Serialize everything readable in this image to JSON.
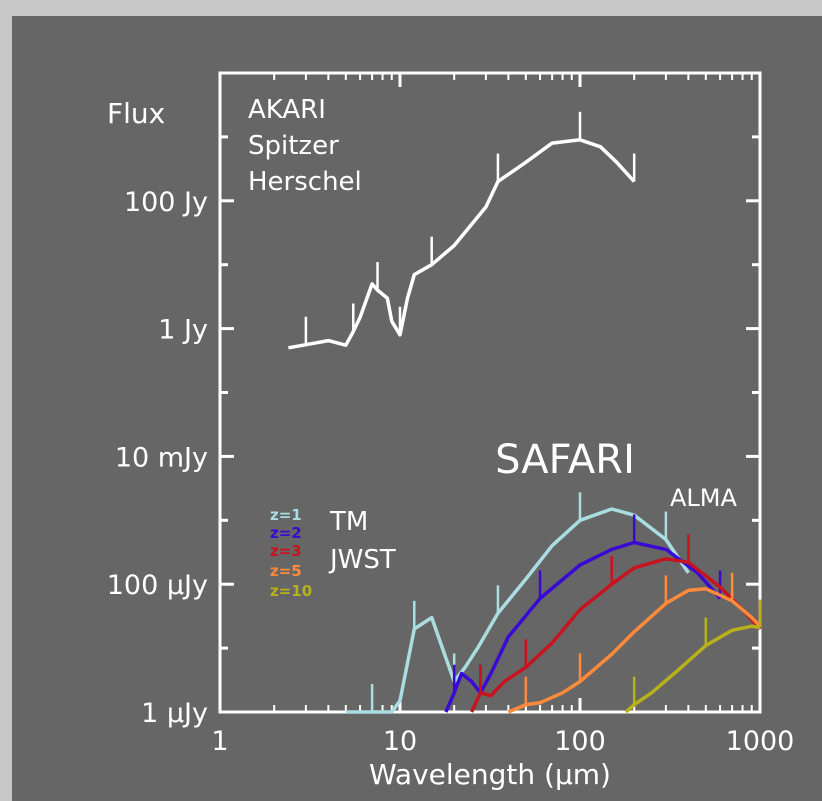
{
  "chart_data": {
    "type": "line",
    "title": "",
    "xlabel": "Wavelength (μm)",
    "ylabel": "Flux",
    "x_scale": "log",
    "y_scale": "log",
    "xlim": [
      1,
      1000
    ],
    "ylim": [
      1,
      10000000000
    ],
    "x_ticks": [
      {
        "value": 1,
        "label": "1"
      },
      {
        "value": 10,
        "label": "10"
      },
      {
        "value": 100,
        "label": "100"
      },
      {
        "value": 1000,
        "label": "1000"
      }
    ],
    "y_ticks": [
      {
        "value": 1,
        "label": "1  μJy"
      },
      {
        "value": 100,
        "label": "100  μJy"
      },
      {
        "value": 10000,
        "label": "10  mJy"
      },
      {
        "value": 1000000,
        "label": "1  Jy"
      },
      {
        "value": 100000000,
        "label": "100  Jy"
      }
    ],
    "y_units": "μJy",
    "series": [
      {
        "name": "",
        "color": "#ffffff",
        "points": [
          [
            2.4,
            500000
          ],
          [
            3,
            560000
          ],
          [
            4,
            650000
          ],
          [
            5,
            550000
          ],
          [
            5.5,
            900000
          ],
          [
            6,
            1500000
          ],
          [
            7,
            5000000
          ],
          [
            7.5,
            4000000
          ],
          [
            8.5,
            3000000
          ],
          [
            9,
            1300000
          ],
          [
            10,
            800000
          ],
          [
            11,
            3000000
          ],
          [
            12,
            7000000
          ],
          [
            15,
            10000000
          ],
          [
            20,
            20000000
          ],
          [
            30,
            80000000
          ],
          [
            35,
            200000000
          ],
          [
            50,
            400000000
          ],
          [
            70,
            800000000
          ],
          [
            100,
            900000000
          ],
          [
            130,
            700000000
          ],
          [
            160,
            400000000
          ],
          [
            200,
            200000000
          ]
        ]
      },
      {
        "name": "z=1",
        "color": "#a9dde0",
        "points": [
          [
            5,
            1
          ],
          [
            7,
            1
          ],
          [
            9,
            1
          ],
          [
            10,
            1.5
          ],
          [
            12,
            20
          ],
          [
            15,
            30
          ],
          [
            18,
            7
          ],
          [
            20,
            3
          ],
          [
            23,
            5
          ],
          [
            27,
            10
          ],
          [
            35,
            35
          ],
          [
            50,
            120
          ],
          [
            70,
            400
          ],
          [
            100,
            1000
          ],
          [
            150,
            1500
          ],
          [
            200,
            1200
          ],
          [
            300,
            500
          ],
          [
            400,
            150
          ]
        ]
      },
      {
        "name": "z=2",
        "color": "#3a0ad4",
        "points": [
          [
            18,
            1
          ],
          [
            20,
            2
          ],
          [
            22,
            4
          ],
          [
            25,
            3
          ],
          [
            28,
            2
          ],
          [
            32,
            4
          ],
          [
            40,
            15
          ],
          [
            60,
            60
          ],
          [
            100,
            200
          ],
          [
            150,
            350
          ],
          [
            200,
            450
          ],
          [
            300,
            350
          ],
          [
            450,
            150
          ],
          [
            600,
            60
          ]
        ]
      },
      {
        "name": "z=3",
        "color": "#c8141e",
        "points": [
          [
            25,
            1
          ],
          [
            28,
            2
          ],
          [
            32,
            1.8
          ],
          [
            38,
            3
          ],
          [
            50,
            5
          ],
          [
            70,
            12
          ],
          [
            100,
            40
          ],
          [
            150,
            100
          ],
          [
            200,
            180
          ],
          [
            300,
            250
          ],
          [
            400,
            220
          ],
          [
            600,
            90
          ],
          [
            800,
            40
          ],
          [
            1000,
            20
          ]
        ]
      },
      {
        "name": "z=5",
        "color": "#ff8a3c",
        "points": [
          [
            40,
            1
          ],
          [
            50,
            1.3
          ],
          [
            60,
            1.4
          ],
          [
            80,
            2
          ],
          [
            100,
            3
          ],
          [
            150,
            8
          ],
          [
            200,
            18
          ],
          [
            300,
            50
          ],
          [
            400,
            80
          ],
          [
            500,
            85
          ],
          [
            700,
            55
          ],
          [
            900,
            30
          ],
          [
            1000,
            22
          ]
        ]
      },
      {
        "name": "z=10",
        "color": "#b8b21a",
        "points": [
          [
            180,
            1
          ],
          [
            200,
            1.3
          ],
          [
            250,
            2
          ],
          [
            350,
            4.5
          ],
          [
            500,
            11
          ],
          [
            700,
            19
          ],
          [
            900,
            22
          ],
          [
            1000,
            21
          ]
        ]
      }
    ],
    "legend": {
      "placement": "left-bottom",
      "entries": [
        {
          "label": "z=1",
          "color": "#a9dde0"
        },
        {
          "label": "z=2",
          "color": "#3a0ad4"
        },
        {
          "label": "z=3",
          "color": "#c8141e"
        },
        {
          "label": "z=5",
          "color": "#ff8a3c"
        },
        {
          "label": "z=10",
          "color": "#b8b21a"
        }
      ]
    },
    "annotations": [
      {
        "text": "AKARI"
      },
      {
        "text": "Spitzer"
      },
      {
        "text": "Herschel"
      },
      {
        "text": "SAFARI"
      },
      {
        "text": "ALMA"
      },
      {
        "text": "TM"
      },
      {
        "text": "JWST"
      }
    ]
  }
}
